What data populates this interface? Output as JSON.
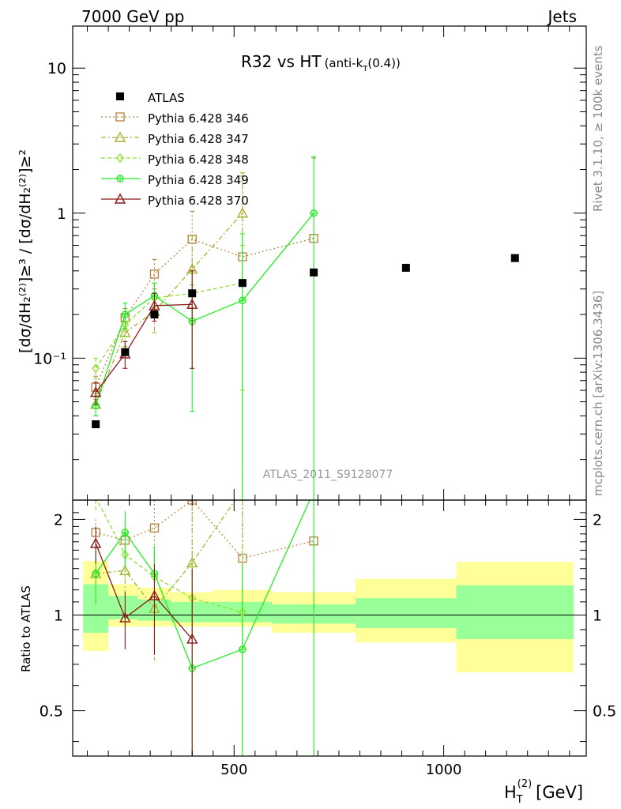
{
  "header": {
    "left": "7000 GeV pp",
    "right": "Jets"
  },
  "side_labels": {
    "rivet": "Rivet 3.1.10, ≥ 100k events",
    "mcplots": "mcplots.cern.ch [arXiv:1306.3436]"
  },
  "chart_data": {
    "type": "scatter",
    "title_main": "R32 vs HT",
    "title_sub": "(anti-k",
    "title_sub_index": "T",
    "title_sub_end": "(0.4))",
    "watermark": "ATLAS_2011_S9128077",
    "ylabel": "[dσ/dH₂⁽²⁾]≥³ / [dσ/dH₂⁽²⁾]≥²",
    "xlabel": "H_T^(2) [GeV]",
    "xlabel_main": "H",
    "xlabel_sub": "T",
    "xlabel_sup": "(2)",
    "xlabel_unit": "[GeV]",
    "ratio_ylabel": "Ratio to ATLAS",
    "xlim": [
      115,
      1340
    ],
    "ylim_main": [
      0.0105,
      19.5
    ],
    "ylim_ratio": [
      0.36,
      2.3
    ],
    "y_scale": "log",
    "x_ticks": [
      500,
      1000
    ],
    "x_tick_labels": [
      "500",
      "1000"
    ],
    "y_main_tick_labels": [
      {
        "value": 10,
        "label": "10"
      },
      {
        "value": 1,
        "label": "1"
      },
      {
        "value": 0.1,
        "label": "10⁻¹"
      }
    ],
    "y_ratio_tick_labels": [
      {
        "value": 2,
        "label": "2"
      },
      {
        "value": 1,
        "label": "1"
      },
      {
        "value": 0.5,
        "label": "0.5"
      }
    ],
    "legend_position": "top-left",
    "data_series": {
      "name": "ATLAS",
      "color": "#000000",
      "x": [
        170,
        240,
        310,
        400,
        520,
        690,
        910,
        1170
      ],
      "y": [
        0.035,
        0.11,
        0.2,
        0.28,
        0.33,
        0.39,
        0.42,
        0.49
      ]
    },
    "bands": [
      {
        "x0": 140,
        "x1": 200,
        "y68": [
          0.88,
          1.25
        ],
        "y95": [
          0.77,
          1.48
        ]
      },
      {
        "x0": 200,
        "x1": 270,
        "y68": [
          0.97,
          1.15
        ],
        "y95": [
          0.92,
          1.25
        ]
      },
      {
        "x0": 270,
        "x1": 350,
        "y68": [
          0.96,
          1.12
        ],
        "y95": [
          0.92,
          1.22
        ]
      },
      {
        "x0": 350,
        "x1": 450,
        "y68": [
          0.95,
          1.1
        ],
        "y95": [
          0.92,
          1.18
        ]
      },
      {
        "x0": 450,
        "x1": 590,
        "y68": [
          0.95,
          1.1
        ],
        "y95": [
          0.92,
          1.2
        ]
      },
      {
        "x0": 590,
        "x1": 790,
        "y68": [
          0.94,
          1.08
        ],
        "y95": [
          0.88,
          1.18
        ]
      },
      {
        "x0": 790,
        "x1": 1030,
        "y68": [
          0.91,
          1.13
        ],
        "y95": [
          0.82,
          1.3
        ]
      },
      {
        "x0": 1030,
        "x1": 1310,
        "y68": [
          0.84,
          1.24
        ],
        "y95": [
          0.66,
          1.47
        ]
      }
    ],
    "series": [
      {
        "name": "Pythia 6.428 346",
        "color": "#b8894a",
        "dash": "2,3",
        "marker": "square",
        "x": [
          170,
          240,
          310,
          400,
          520,
          690
        ],
        "y": [
          0.063,
          0.19,
          0.38,
          0.66,
          0.5,
          0.67
        ],
        "ylo": [
          0.052,
          0.16,
          0.3,
          0.4,
          0.0001,
          0.0001
        ],
        "yhi": [
          0.075,
          0.22,
          0.48,
          1.03,
          1.8,
          2.4
        ],
        "ratio": [
          1.82,
          1.72,
          1.88,
          2.3,
          1.51,
          1.71
        ],
        "ratio_lo": [
          1.6,
          1.45,
          1.5,
          1.3,
          0.1,
          0.1
        ],
        "ratio_hi": [
          2.0,
          2.0,
          2.3,
          2.3,
          2.3,
          2.3
        ]
      },
      {
        "name": "Pythia 6.428 347",
        "color": "#a8b030",
        "dash": "6,3,2,3",
        "marker": "triangle",
        "x": [
          170,
          240,
          310,
          400,
          520
        ],
        "y": [
          0.048,
          0.15,
          0.21,
          0.41,
          1.0
        ],
        "ylo": [
          0.04,
          0.12,
          0.15,
          0.22,
          0.0001
        ],
        "yhi": [
          0.057,
          0.18,
          0.28,
          0.7,
          1.9
        ],
        "ratio": [
          1.35,
          1.38,
          1.05,
          1.46,
          2.8
        ],
        "ratio_lo": [
          1.2,
          1.15,
          0.72,
          0.8,
          0.1
        ],
        "ratio_hi": [
          1.5,
          1.65,
          1.4,
          2.2,
          2.3
        ]
      },
      {
        "name": "Pythia 6.428 348",
        "color": "#90e030",
        "dash": "5,3",
        "marker": "diamond",
        "x": [
          170,
          240,
          310,
          400,
          520
        ],
        "y": [
          0.085,
          0.17,
          0.26,
          0.28,
          0.33
        ],
        "ylo": [
          0.072,
          0.14,
          0.2,
          0.17,
          0.06
        ],
        "yhi": [
          0.1,
          0.21,
          0.33,
          0.4,
          0.6
        ],
        "ratio": [
          2.35,
          1.55,
          1.32,
          1.13,
          1.02
        ],
        "ratio_lo": [
          2.1,
          1.3,
          1.05,
          0.8,
          0.5
        ],
        "ratio_hi": [
          2.5,
          1.85,
          1.6,
          1.5,
          1.6
        ]
      },
      {
        "name": "Pythia 6.428 349",
        "color": "#22ee22",
        "dash": "",
        "marker": "circle",
        "x": [
          170,
          240,
          310,
          400,
          520,
          690
        ],
        "y": [
          0.047,
          0.2,
          0.27,
          0.18,
          0.25,
          1.0
        ],
        "ylo": [
          0.04,
          0.16,
          0.21,
          0.043,
          0.0001,
          0.0001
        ],
        "yhi": [
          0.055,
          0.24,
          0.33,
          0.32,
          0.72,
          2.45
        ],
        "ratio": [
          1.35,
          1.82,
          1.35,
          0.68,
          0.78,
          2.45
        ],
        "ratio_lo": [
          1.08,
          1.42,
          1.05,
          0.2,
          0.1,
          0.1
        ],
        "ratio_hi": [
          1.6,
          2.12,
          1.65,
          1.15,
          1.45,
          2.4
        ]
      },
      {
        "name": "Pythia 6.428 370",
        "color": "#8b1a1a",
        "dash": "",
        "marker": "triangle",
        "x": [
          170,
          240,
          310,
          400
        ],
        "y": [
          0.058,
          0.107,
          0.23,
          0.235
        ],
        "ylo": [
          0.048,
          0.085,
          0.18,
          0.085
        ],
        "yhi": [
          0.068,
          0.13,
          0.28,
          0.4
        ],
        "ratio": [
          1.68,
          0.98,
          1.15,
          0.84
        ],
        "ratio_lo": [
          1.45,
          0.78,
          0.75,
          0.25
        ],
        "ratio_hi": [
          1.9,
          1.18,
          1.45,
          1.4
        ]
      }
    ]
  }
}
